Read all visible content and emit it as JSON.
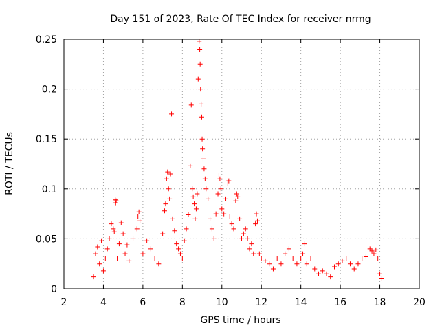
{
  "chart_data": {
    "type": "scatter",
    "title": "Day 151 of 2023, Rate Of TEC Index for receiver nrmg",
    "xlabel": "GPS time / hours",
    "ylabel": "ROTI / TECUs",
    "xlim": [
      2,
      20
    ],
    "ylim": [
      0,
      0.25
    ],
    "x_ticks": [
      2,
      4,
      6,
      8,
      10,
      12,
      14,
      16,
      18,
      20
    ],
    "x_tick_labels": [
      "2",
      "4",
      "6",
      "8",
      "10",
      "12",
      "14",
      "16",
      "18",
      "20"
    ],
    "y_ticks": [
      0,
      0.05,
      0.1,
      0.15,
      0.2,
      0.25
    ],
    "y_tick_labels": [
      "0",
      "0.05",
      "0.1",
      "0.15",
      "0.2",
      "0.25"
    ],
    "grid": true,
    "marker": "plus",
    "color": "#ff0000",
    "series": [
      {
        "name": "ROTI",
        "points": [
          [
            3.5,
            0.012
          ],
          [
            3.6,
            0.035
          ],
          [
            3.7,
            0.042
          ],
          [
            3.8,
            0.025
          ],
          [
            3.9,
            0.048
          ],
          [
            4.0,
            0.018
          ],
          [
            4.1,
            0.03
          ],
          [
            4.2,
            0.04
          ],
          [
            4.3,
            0.05
          ],
          [
            4.4,
            0.065
          ],
          [
            4.5,
            0.06
          ],
          [
            4.55,
            0.057
          ],
          [
            4.6,
            0.089
          ],
          [
            4.62,
            0.086
          ],
          [
            4.65,
            0.088
          ],
          [
            4.7,
            0.03
          ],
          [
            4.8,
            0.045
          ],
          [
            4.9,
            0.066
          ],
          [
            5.0,
            0.055
          ],
          [
            5.1,
            0.035
          ],
          [
            5.2,
            0.044
          ],
          [
            5.3,
            0.028
          ],
          [
            5.5,
            0.05
          ],
          [
            5.7,
            0.06
          ],
          [
            5.75,
            0.072
          ],
          [
            5.8,
            0.077
          ],
          [
            5.85,
            0.068
          ],
          [
            6.0,
            0.035
          ],
          [
            6.2,
            0.048
          ],
          [
            6.4,
            0.04
          ],
          [
            6.6,
            0.03
          ],
          [
            6.8,
            0.025
          ],
          [
            7.0,
            0.055
          ],
          [
            7.1,
            0.078
          ],
          [
            7.15,
            0.085
          ],
          [
            7.2,
            0.11
          ],
          [
            7.25,
            0.117
          ],
          [
            7.3,
            0.1
          ],
          [
            7.35,
            0.09
          ],
          [
            7.4,
            0.115
          ],
          [
            7.45,
            0.175
          ],
          [
            7.5,
            0.07
          ],
          [
            7.6,
            0.058
          ],
          [
            7.7,
            0.045
          ],
          [
            7.8,
            0.04
          ],
          [
            7.9,
            0.035
          ],
          [
            8.0,
            0.03
          ],
          [
            8.1,
            0.048
          ],
          [
            8.2,
            0.06
          ],
          [
            8.3,
            0.074
          ],
          [
            8.4,
            0.123
          ],
          [
            8.45,
            0.184
          ],
          [
            8.5,
            0.1
          ],
          [
            8.55,
            0.092
          ],
          [
            8.6,
            0.085
          ],
          [
            8.65,
            0.07
          ],
          [
            8.7,
            0.08
          ],
          [
            8.75,
            0.095
          ],
          [
            8.8,
            0.21
          ],
          [
            8.85,
            0.248
          ],
          [
            8.88,
            0.24
          ],
          [
            8.9,
            0.225
          ],
          [
            8.92,
            0.2
          ],
          [
            8.95,
            0.185
          ],
          [
            8.98,
            0.172
          ],
          [
            9.0,
            0.15
          ],
          [
            9.02,
            0.14
          ],
          [
            9.05,
            0.13
          ],
          [
            9.1,
            0.12
          ],
          [
            9.15,
            0.11
          ],
          [
            9.2,
            0.1
          ],
          [
            9.3,
            0.09
          ],
          [
            9.4,
            0.07
          ],
          [
            9.5,
            0.06
          ],
          [
            9.6,
            0.05
          ],
          [
            9.7,
            0.075
          ],
          [
            9.8,
            0.095
          ],
          [
            9.85,
            0.114
          ],
          [
            9.9,
            0.11
          ],
          [
            9.95,
            0.1
          ],
          [
            10.0,
            0.08
          ],
          [
            10.1,
            0.075
          ],
          [
            10.2,
            0.09
          ],
          [
            10.3,
            0.105
          ],
          [
            10.35,
            0.108
          ],
          [
            10.4,
            0.072
          ],
          [
            10.5,
            0.065
          ],
          [
            10.6,
            0.06
          ],
          [
            10.7,
            0.088
          ],
          [
            10.75,
            0.095
          ],
          [
            10.8,
            0.092
          ],
          [
            10.9,
            0.07
          ],
          [
            11.0,
            0.05
          ],
          [
            11.1,
            0.055
          ],
          [
            11.2,
            0.06
          ],
          [
            11.3,
            0.05
          ],
          [
            11.4,
            0.04
          ],
          [
            11.5,
            0.045
          ],
          [
            11.6,
            0.035
          ],
          [
            11.7,
            0.065
          ],
          [
            11.75,
            0.075
          ],
          [
            11.8,
            0.068
          ],
          [
            11.9,
            0.035
          ],
          [
            12.0,
            0.03
          ],
          [
            12.2,
            0.028
          ],
          [
            12.4,
            0.025
          ],
          [
            12.6,
            0.02
          ],
          [
            12.8,
            0.03
          ],
          [
            13.0,
            0.025
          ],
          [
            13.2,
            0.035
          ],
          [
            13.4,
            0.04
          ],
          [
            13.6,
            0.03
          ],
          [
            13.8,
            0.025
          ],
          [
            14.0,
            0.03
          ],
          [
            14.1,
            0.035
          ],
          [
            14.2,
            0.045
          ],
          [
            14.3,
            0.025
          ],
          [
            14.5,
            0.03
          ],
          [
            14.7,
            0.02
          ],
          [
            14.9,
            0.015
          ],
          [
            15.1,
            0.018
          ],
          [
            15.3,
            0.015
          ],
          [
            15.5,
            0.012
          ],
          [
            15.7,
            0.022
          ],
          [
            15.9,
            0.025
          ],
          [
            16.1,
            0.028
          ],
          [
            16.3,
            0.03
          ],
          [
            16.5,
            0.025
          ],
          [
            16.7,
            0.02
          ],
          [
            16.9,
            0.025
          ],
          [
            17.1,
            0.03
          ],
          [
            17.3,
            0.032
          ],
          [
            17.5,
            0.04
          ],
          [
            17.6,
            0.038
          ],
          [
            17.7,
            0.035
          ],
          [
            17.8,
            0.039
          ],
          [
            17.9,
            0.03
          ],
          [
            18.0,
            0.015
          ],
          [
            18.1,
            0.01
          ]
        ]
      }
    ]
  }
}
